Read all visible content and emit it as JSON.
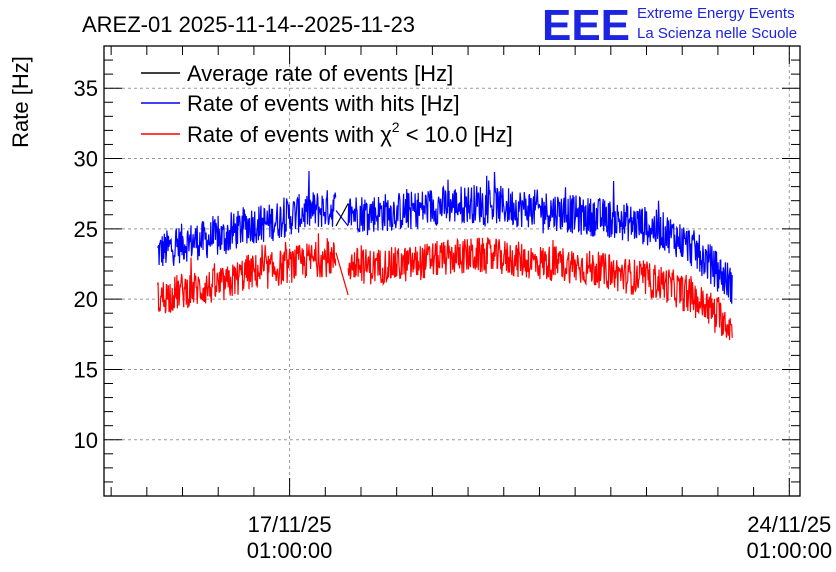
{
  "logo": {
    "mark": "EEE",
    "line1": "Extreme Energy Events",
    "line2": "La Scienza nelle Scuole",
    "color": "#1b24e0"
  },
  "chart_data": {
    "type": "line",
    "title": "AREZ-01 2025-11-14--2025-11-23",
    "ylabel": "Rate [Hz]",
    "xlabel": "",
    "ylim": [
      6,
      38
    ],
    "xlim": [
      -2.6,
      7.15
    ],
    "yticks": [
      10,
      15,
      20,
      25,
      30,
      35
    ],
    "xticks": [
      {
        "value": 0,
        "label_date": "17/11/25",
        "label_time": "01:00:00"
      },
      {
        "value": 7,
        "label_date": "24/11/25",
        "label_time": "01:00:00"
      }
    ],
    "grid": true,
    "legend_position": "top-left",
    "gap": {
      "start": 0.65,
      "end": 0.82
    },
    "series": [
      {
        "name": "Average rate of events [Hz]",
        "color": "#000000",
        "x": [
          0.65,
          0.82
        ],
        "values": [
          26.4,
          26.8
        ],
        "markers": false
      },
      {
        "name": "Rate of events with hits [Hz]",
        "color": "#0000ff",
        "x": [
          -1.85,
          -1.5,
          -1.2,
          -0.9,
          -0.6,
          -0.3,
          0.0,
          0.3,
          0.65,
          0.82,
          1.1,
          1.4,
          1.7,
          2.0,
          2.3,
          2.6,
          2.9,
          3.2,
          3.5,
          3.8,
          4.1,
          4.4,
          4.7,
          5.0,
          5.3,
          5.6,
          5.9,
          6.2
        ],
        "values": [
          23.3,
          24.0,
          24.2,
          24.4,
          25.3,
          25.4,
          25.9,
          26.3,
          26.5,
          26.2,
          26.1,
          26.2,
          26.3,
          26.6,
          26.7,
          26.8,
          26.7,
          26.5,
          26.4,
          26.2,
          25.9,
          25.8,
          25.5,
          25.2,
          24.7,
          23.8,
          22.5,
          21.0
        ],
        "spread": 1.4
      },
      {
        "name": "Rate of events with χ2 < 10.0 [Hz]",
        "label_prefix": "Rate of events with ",
        "label_chi": "χ",
        "label_sup": "2",
        "label_suffix": " < 10.0 [Hz]",
        "color": "#ff0000",
        "x": [
          -1.85,
          -1.5,
          -1.2,
          -0.9,
          -0.6,
          -0.3,
          0.0,
          0.3,
          0.65,
          0.82,
          1.1,
          1.4,
          1.7,
          2.0,
          2.3,
          2.6,
          2.9,
          3.2,
          3.5,
          3.8,
          4.1,
          4.4,
          4.7,
          5.0,
          5.3,
          5.6,
          5.9,
          6.2
        ],
        "values": [
          20.0,
          20.6,
          20.8,
          21.0,
          21.9,
          22.0,
          22.4,
          22.8,
          22.9,
          22.5,
          22.3,
          22.4,
          22.5,
          22.8,
          23.0,
          23.1,
          23.0,
          22.8,
          22.6,
          22.5,
          22.3,
          22.0,
          21.7,
          21.4,
          21.0,
          20.2,
          19.3,
          18.0
        ],
        "spread": 1.3
      }
    ]
  }
}
